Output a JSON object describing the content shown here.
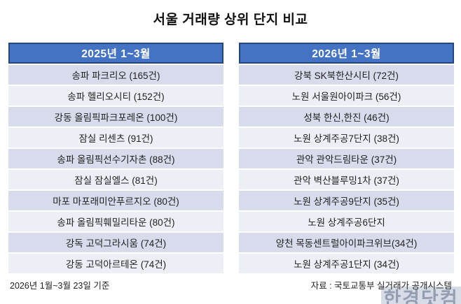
{
  "title": "서울 거래량 상위 단지 비교",
  "colors": {
    "header_bg": "#4573c4",
    "header_border": "#24457e",
    "header_text": "#ffffff",
    "row_odd": "#d7dbec",
    "row_even": "#edeff6",
    "row_text": "#1f1f1f"
  },
  "tables": [
    {
      "header": "2025년 1~3월",
      "rows": [
        "송파 파크리오 (165건)",
        "송파 헬리오시티 (152건)",
        "강동 올림픽파크포레온 (100건)",
        "잠실 리센츠 (91건)",
        "송파 올림픽선수기자촌 (88건)",
        "잠실 잠실엘스 (81건)",
        "마포 마포래미안푸르지오 (80건)",
        "송파 올림픽훼밀리타운 (80건)",
        "강독 고덕그라시움 (74건)",
        "강동 고덕아르테온 (74건)"
      ]
    },
    {
      "header": "2026년 1~3월",
      "rows": [
        "강북 SK북한산시티 (72건)",
        "노원 서울원아이파크 (56건)",
        "성북 한신,한진 (46건)",
        "노원 상계주공7단지 (38건)",
        "관악 관악드림타운 (37건)",
        "관악 벽산블루밍1차 (37건)",
        "노원 상계주공9단지 (35건)",
        "노원 상계주공6단지",
        "양천 목동센트럴아이파크위브(34건)",
        "노원 상계주공1단지 (34건)"
      ]
    }
  ],
  "footer": {
    "left": "2026년 1월~3월 23일 기준",
    "right": "자료 : 국토교통부 실거래가 공개시스템"
  },
  "watermark": "한경닷컴",
  "chart_data": {
    "type": "table",
    "title": "서울 거래량 상위 단지 비교",
    "unit": "건",
    "series": [
      {
        "name": "2025년 1~3월",
        "complexes": [
          {
            "name": "송파 파크리오",
            "count": 165
          },
          {
            "name": "송파 헬리오시티",
            "count": 152
          },
          {
            "name": "강동 올림픽파크포레온",
            "count": 100
          },
          {
            "name": "잠실 리센츠",
            "count": 91
          },
          {
            "name": "송파 올림픽선수기자촌",
            "count": 88
          },
          {
            "name": "잠실 잠실엘스",
            "count": 81
          },
          {
            "name": "마포 마포래미안푸르지오",
            "count": 80
          },
          {
            "name": "송파 올림픽훼밀리타운",
            "count": 80
          },
          {
            "name": "강독 고덕그라시움",
            "count": 74
          },
          {
            "name": "강동 고덕아르테온",
            "count": 74
          }
        ]
      },
      {
        "name": "2026년 1~3월",
        "complexes": [
          {
            "name": "강북 SK북한산시티",
            "count": 72
          },
          {
            "name": "노원 서울원아이파크",
            "count": 56
          },
          {
            "name": "성북 한신,한진",
            "count": 46
          },
          {
            "name": "노원 상계주공7단지",
            "count": 38
          },
          {
            "name": "관악 관악드림타운",
            "count": 37
          },
          {
            "name": "관악 벽산블루밍1차",
            "count": 37
          },
          {
            "name": "노원 상계주공9단지",
            "count": 35
          },
          {
            "name": "노원 상계주공6단지",
            "count": null
          },
          {
            "name": "양천 목동센트럴아이파크위브",
            "count": 34
          },
          {
            "name": "노원 상계주공1단지",
            "count": 34
          }
        ]
      }
    ]
  }
}
